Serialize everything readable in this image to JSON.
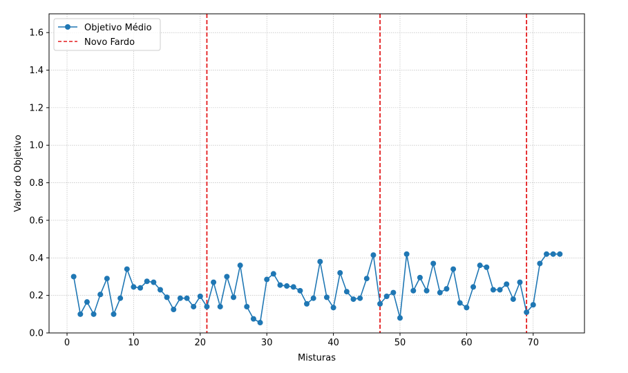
{
  "chart_data": {
    "type": "line",
    "xlabel": "Misturas",
    "ylabel": "Valor do Objetivo",
    "xlim": [
      -2.7,
      77.7
    ],
    "ylim": [
      0.0,
      1.7
    ],
    "xticks": [
      0,
      10,
      20,
      30,
      40,
      50,
      60,
      70
    ],
    "yticks": [
      0.0,
      0.2,
      0.4,
      0.6,
      0.8,
      1.0,
      1.2,
      1.4,
      1.6
    ],
    "xtick_labels": [
      "0",
      "10",
      "20",
      "30",
      "40",
      "50",
      "60",
      "70"
    ],
    "ytick_labels": [
      "0.0",
      "0.2",
      "0.4",
      "0.6",
      "0.8",
      "1.0",
      "1.2",
      "1.4",
      "1.6"
    ],
    "grid": true,
    "legend_position": "top-left",
    "series": [
      {
        "name": "Objetivo Médio",
        "color": "#1f77b4",
        "marker": "circle",
        "x": [
          1,
          2,
          3,
          4,
          5,
          6,
          7,
          8,
          9,
          10,
          11,
          12,
          13,
          14,
          15,
          16,
          17,
          18,
          19,
          20,
          21,
          22,
          23,
          24,
          25,
          26,
          27,
          28,
          29,
          30,
          31,
          32,
          33,
          34,
          35,
          36,
          37,
          38,
          39,
          40,
          41,
          42,
          43,
          44,
          45,
          46,
          47,
          48,
          49,
          50,
          51,
          52,
          53,
          54,
          55,
          56,
          57,
          58,
          59,
          60,
          61,
          62,
          63,
          64,
          65,
          66,
          67,
          68,
          69,
          70,
          71,
          72,
          73,
          74
        ],
        "y": [
          0.3,
          0.1,
          0.165,
          0.1,
          0.205,
          0.29,
          0.1,
          0.185,
          0.34,
          0.245,
          0.24,
          0.275,
          0.27,
          0.23,
          0.19,
          0.125,
          0.185,
          0.185,
          0.14,
          0.195,
          0.14,
          0.27,
          0.14,
          0.3,
          0.19,
          0.36,
          0.14,
          0.075,
          0.055,
          0.285,
          0.315,
          0.255,
          0.25,
          0.245,
          0.225,
          0.155,
          0.185,
          0.38,
          0.19,
          0.135,
          0.32,
          0.22,
          0.18,
          0.185,
          0.29,
          0.415,
          0.155,
          0.195,
          0.215,
          0.08,
          0.42,
          0.225,
          0.295,
          0.225,
          0.37,
          0.215,
          0.235,
          0.34,
          0.16,
          0.135,
          0.245,
          0.36,
          0.35,
          0.23,
          0.23,
          0.26,
          0.18,
          0.27,
          0.11,
          0.15,
          0.37,
          0.42,
          0.42,
          0.42
        ]
      },
      {
        "name": "Novo Fardo",
        "color": "#e41a1c",
        "style": "dashed",
        "vlines": [
          21,
          47,
          69
        ]
      }
    ]
  }
}
